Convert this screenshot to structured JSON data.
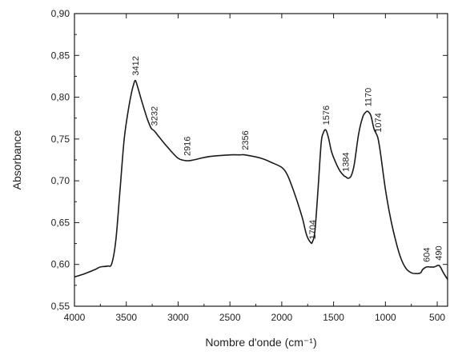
{
  "chart_data": {
    "type": "line",
    "title": "",
    "xlabel": "Nombre d'onde (cm⁻¹)",
    "ylabel": "Absorbance",
    "xlim": [
      4000,
      400
    ],
    "ylim": [
      0.55,
      0.9
    ],
    "x_reversed": true,
    "grid": false,
    "legend": "none",
    "x_ticks": [
      4000,
      3500,
      3000,
      2500,
      2000,
      1500,
      1000,
      500
    ],
    "x_tick_labels": [
      "4000",
      "3500",
      "3000",
      "2500",
      "2000",
      "1500",
      "1000",
      "500"
    ],
    "y_ticks": [
      0.55,
      0.6,
      0.65,
      0.7,
      0.75,
      0.8,
      0.85,
      0.9
    ],
    "y_tick_labels": [
      "0,55",
      "0,60",
      "0,65",
      "0,70",
      "0,75",
      "0,80",
      "0,85",
      "0,90"
    ],
    "series": [
      {
        "color": "#1a1a1a",
        "points": [
          [
            4000,
            0.585
          ],
          [
            3900,
            0.589
          ],
          [
            3800,
            0.594
          ],
          [
            3750,
            0.597
          ],
          [
            3680,
            0.598
          ],
          [
            3640,
            0.601
          ],
          [
            3600,
            0.63
          ],
          [
            3560,
            0.69
          ],
          [
            3520,
            0.75
          ],
          [
            3480,
            0.785
          ],
          [
            3450,
            0.805
          ],
          [
            3430,
            0.815
          ],
          [
            3412,
            0.82
          ],
          [
            3390,
            0.812
          ],
          [
            3350,
            0.795
          ],
          [
            3300,
            0.775
          ],
          [
            3260,
            0.763
          ],
          [
            3232,
            0.76
          ],
          [
            3180,
            0.752
          ],
          [
            3100,
            0.74
          ],
          [
            3000,
            0.727
          ],
          [
            2916,
            0.724
          ],
          [
            2850,
            0.725
          ],
          [
            2700,
            0.729
          ],
          [
            2500,
            0.731
          ],
          [
            2400,
            0.731
          ],
          [
            2356,
            0.731
          ],
          [
            2200,
            0.727
          ],
          [
            2100,
            0.722
          ],
          [
            2000,
            0.716
          ],
          [
            1950,
            0.708
          ],
          [
            1900,
            0.693
          ],
          [
            1850,
            0.675
          ],
          [
            1800,
            0.655
          ],
          [
            1760,
            0.635
          ],
          [
            1720,
            0.626
          ],
          [
            1704,
            0.627
          ],
          [
            1680,
            0.64
          ],
          [
            1650,
            0.69
          ],
          [
            1620,
            0.745
          ],
          [
            1600,
            0.757
          ],
          [
            1576,
            0.761
          ],
          [
            1550,
            0.752
          ],
          [
            1520,
            0.735
          ],
          [
            1480,
            0.722
          ],
          [
            1440,
            0.712
          ],
          [
            1400,
            0.706
          ],
          [
            1384,
            0.705
          ],
          [
            1360,
            0.703
          ],
          [
            1330,
            0.706
          ],
          [
            1300,
            0.72
          ],
          [
            1260,
            0.755
          ],
          [
            1220,
            0.776
          ],
          [
            1190,
            0.782
          ],
          [
            1170,
            0.783
          ],
          [
            1140,
            0.778
          ],
          [
            1110,
            0.762
          ],
          [
            1074,
            0.752
          ],
          [
            1050,
            0.735
          ],
          [
            1000,
            0.69
          ],
          [
            950,
            0.655
          ],
          [
            900,
            0.628
          ],
          [
            850,
            0.607
          ],
          [
            800,
            0.595
          ],
          [
            750,
            0.59
          ],
          [
            700,
            0.589
          ],
          [
            660,
            0.59
          ],
          [
            640,
            0.594
          ],
          [
            604,
            0.597
          ],
          [
            570,
            0.597
          ],
          [
            530,
            0.597
          ],
          [
            490,
            0.599
          ],
          [
            470,
            0.597
          ],
          [
            440,
            0.59
          ],
          [
            400,
            0.582
          ]
        ]
      }
    ],
    "annotations": [
      {
        "label": "3412",
        "x": 3412,
        "y": 0.82
      },
      {
        "label": "3232",
        "x": 3232,
        "y": 0.76
      },
      {
        "label": "2916",
        "x": 2916,
        "y": 0.724
      },
      {
        "label": "2356",
        "x": 2356,
        "y": 0.731
      },
      {
        "label": "1704",
        "x": 1704,
        "y": 0.627
      },
      {
        "label": "1576",
        "x": 1576,
        "y": 0.761
      },
      {
        "label": "1384",
        "x": 1384,
        "y": 0.705
      },
      {
        "label": "1170",
        "x": 1170,
        "y": 0.783
      },
      {
        "label": "1074",
        "x": 1074,
        "y": 0.752
      },
      {
        "label": "604",
        "x": 604,
        "y": 0.597
      },
      {
        "label": "490",
        "x": 490,
        "y": 0.599
      }
    ]
  }
}
